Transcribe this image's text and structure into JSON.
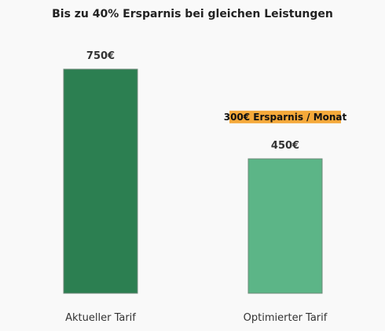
{
  "chart_data": {
    "type": "bar",
    "title": "Bis zu 40% Ersparnis bei gleichen Leistungen",
    "xlabel": "",
    "ylabel": "",
    "categories": [
      "Aktueller Tarif",
      "Optimierter Tarif"
    ],
    "values": [
      750,
      450
    ],
    "value_labels": [
      "750€",
      "450€"
    ],
    "colors": [
      "#2c7f51",
      "#5cb587"
    ],
    "ylim": [
      0,
      800
    ],
    "grid": false,
    "annotation": {
      "text": "300€ Ersparnis / Monat",
      "background": "#f5a93a",
      "category": "Optimierter Tarif",
      "value": 590
    }
  }
}
